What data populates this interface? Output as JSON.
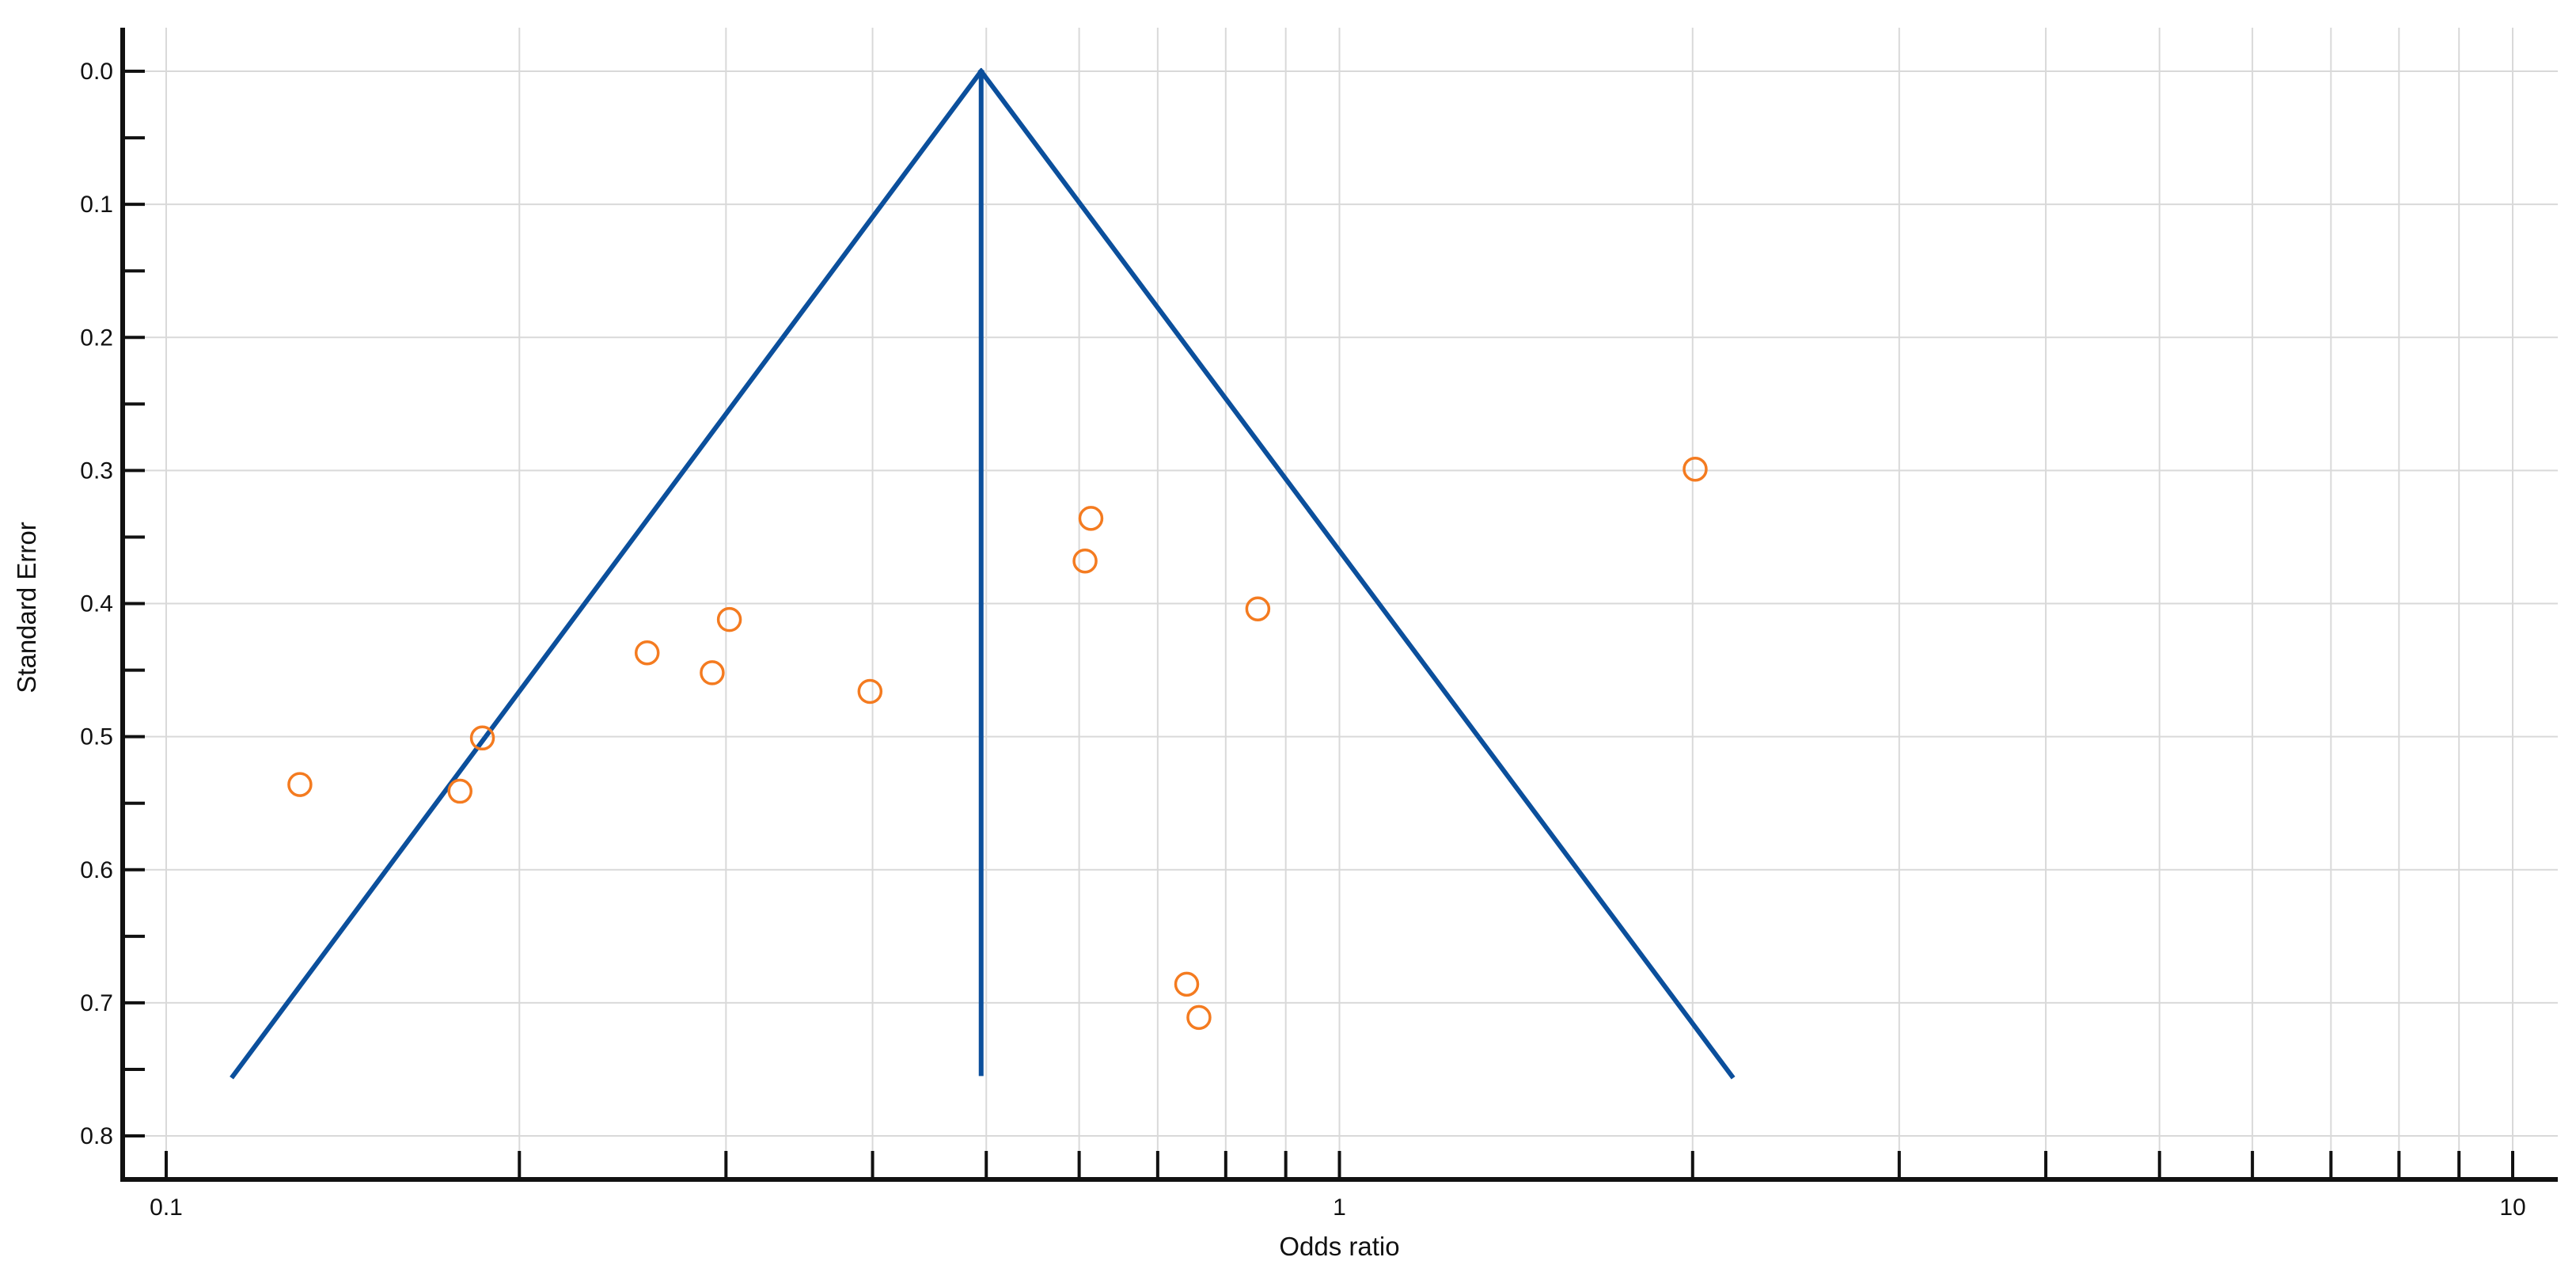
{
  "chart_data": {
    "type": "scatter",
    "title": "",
    "xlabel": "Odds ratio",
    "ylabel": "Standard Error",
    "x_scale": "log",
    "xlim": [
      0.1,
      10
    ],
    "ylim": [
      0.0,
      0.8
    ],
    "y_inverted": true,
    "grid": true,
    "x_tick_labels": [
      "0.1",
      "1",
      "10"
    ],
    "y_tick_labels": [
      "0.0",
      "0.1",
      "0.2",
      "0.3",
      "0.4",
      "0.5",
      "0.6",
      "0.7",
      "0.8"
    ],
    "x_minor_ticks": [
      0.2,
      0.3,
      0.4,
      0.5,
      0.6,
      0.7,
      0.8,
      0.9,
      2,
      3,
      4,
      5,
      6,
      7,
      8,
      9
    ],
    "y_minor_ticks": [
      0.05,
      0.15,
      0.25,
      0.35,
      0.45,
      0.55,
      0.65,
      0.75
    ],
    "funnel": {
      "summary_or": 0.495,
      "apex_se": 0.0,
      "base_se": 0.755,
      "left_base_or": 0.114,
      "right_base_or": 2.16,
      "color": "#0b4f9c"
    },
    "points": [
      {
        "x": 0.13,
        "y": 0.536
      },
      {
        "x": 0.178,
        "y": 0.541
      },
      {
        "x": 0.186,
        "y": 0.501
      },
      {
        "x": 0.257,
        "y": 0.437
      },
      {
        "x": 0.292,
        "y": 0.452
      },
      {
        "x": 0.302,
        "y": 0.412
      },
      {
        "x": 0.398,
        "y": 0.466
      },
      {
        "x": 0.607,
        "y": 0.368
      },
      {
        "x": 0.614,
        "y": 0.336
      },
      {
        "x": 0.741,
        "y": 0.686
      },
      {
        "x": 0.759,
        "y": 0.711
      },
      {
        "x": 0.852,
        "y": 0.404
      },
      {
        "x": 2.01,
        "y": 0.299
      }
    ],
    "point_color": "#f47b20",
    "line_color": "#0b4f9c",
    "axis_color": "#111111",
    "grid_color": "#d9d9d9"
  }
}
